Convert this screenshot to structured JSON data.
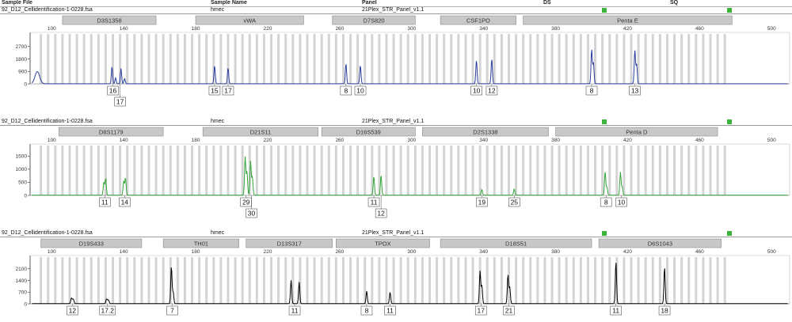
{
  "header": {
    "columns": [
      "Sample File",
      "Sample Name",
      "Panel",
      "DS",
      "SQ"
    ],
    "ds_color": "#3cb43c",
    "sq_color": "#3cb43c"
  },
  "panels": [
    {
      "sample_file": "92_D12_Cellidentification-1-0228.fsa",
      "sample_name": "hmec",
      "panel": "21Plex_STR_Panel_v1.1",
      "trace_color": "#2b3f9e"
    },
    {
      "sample_file": "92_D12_Cellidentification-1-0228.fsa",
      "sample_name": "hmec",
      "panel": "21Plex_STR_Panel_v1.1",
      "trace_color": "#35a63a"
    },
    {
      "sample_file": "92_D12_Cellidentification-1-0228.fsa",
      "sample_name": "hmec",
      "panel": "21Plex_STR_Panel_v1.1",
      "trace_color": "#000000"
    }
  ],
  "chart_data": [
    {
      "type": "line",
      "series": "electropherogram",
      "x_ticks": [
        100,
        140,
        180,
        220,
        260,
        300,
        340,
        380,
        420,
        460,
        500
      ],
      "xlim": [
        88,
        510
      ],
      "y_ticks": [
        0,
        900,
        1800,
        2700
      ],
      "ylim": [
        0,
        3600
      ],
      "markers": [
        {
          "name": "D3S1358",
          "start": 106,
          "end": 158
        },
        {
          "name": "vWA",
          "start": 180,
          "end": 240
        },
        {
          "name": "D7S820",
          "start": 256,
          "end": 302
        },
        {
          "name": "CSF1PO",
          "start": 316,
          "end": 358
        },
        {
          "name": "Penta E",
          "start": 362,
          "end": 478
        }
      ],
      "peaks": [
        {
          "x": 92,
          "h": 880,
          "w": 1.3
        },
        {
          "x": 133.5,
          "h": 1250,
          "w": 0.35
        },
        {
          "x": 135.5,
          "h": 420,
          "w": 0.35
        },
        {
          "x": 138.5,
          "h": 1100,
          "w": 0.35
        },
        {
          "x": 140.5,
          "h": 380,
          "w": 0.35
        },
        {
          "x": 190.5,
          "h": 1320,
          "w": 0.35
        },
        {
          "x": 198,
          "h": 1150,
          "w": 0.35
        },
        {
          "x": 263.5,
          "h": 1460,
          "w": 0.35
        },
        {
          "x": 271.5,
          "h": 1330,
          "w": 0.35
        },
        {
          "x": 336,
          "h": 1700,
          "w": 0.35
        },
        {
          "x": 344.5,
          "h": 1800,
          "w": 0.35
        },
        {
          "x": 400,
          "h": 2500,
          "w": 0.35
        },
        {
          "x": 401,
          "h": 1500,
          "w": 0.35
        },
        {
          "x": 424,
          "h": 2450,
          "w": 0.35
        },
        {
          "x": 425,
          "h": 1400,
          "w": 0.35
        }
      ],
      "allele_calls": [
        {
          "label": "16",
          "x": 134,
          "row": 0
        },
        {
          "label": "17",
          "x": 138,
          "row": 1
        },
        {
          "label": "15",
          "x": 190.5,
          "row": 0
        },
        {
          "label": "17",
          "x": 198,
          "row": 0
        },
        {
          "label": "8",
          "x": 263.5,
          "row": 0
        },
        {
          "label": "10",
          "x": 271.5,
          "row": 0
        },
        {
          "label": "10",
          "x": 336,
          "row": 0
        },
        {
          "label": "12",
          "x": 344.5,
          "row": 0
        },
        {
          "label": "8",
          "x": 400,
          "row": 0
        },
        {
          "label": "13",
          "x": 424,
          "row": 0
        }
      ]
    },
    {
      "type": "line",
      "series": "electropherogram",
      "x_ticks": [
        100,
        140,
        180,
        220,
        260,
        300,
        340,
        380,
        420,
        460,
        500
      ],
      "xlim": [
        88,
        510
      ],
      "y_ticks": [
        0,
        500,
        1000,
        1500
      ],
      "ylim": [
        0,
        1900
      ],
      "markers": [
        {
          "name": "D8S1179",
          "start": 104,
          "end": 162
        },
        {
          "name": "D21S11",
          "start": 184,
          "end": 248
        },
        {
          "name": "D16S539",
          "start": 250,
          "end": 302
        },
        {
          "name": "D2S1338",
          "start": 306,
          "end": 376
        },
        {
          "name": "Penta D",
          "start": 380,
          "end": 470
        }
      ],
      "peaks": [
        {
          "x": 129,
          "h": 500,
          "w": 0.35
        },
        {
          "x": 130,
          "h": 640,
          "w": 0.35
        },
        {
          "x": 140,
          "h": 540,
          "w": 0.35
        },
        {
          "x": 141,
          "h": 660,
          "w": 0.35
        },
        {
          "x": 207.5,
          "h": 1460,
          "w": 0.35
        },
        {
          "x": 208.5,
          "h": 900,
          "w": 0.35
        },
        {
          "x": 210.5,
          "h": 1300,
          "w": 0.35
        },
        {
          "x": 211.5,
          "h": 700,
          "w": 0.35
        },
        {
          "x": 279,
          "h": 720,
          "w": 0.35
        },
        {
          "x": 283,
          "h": 760,
          "w": 0.35
        },
        {
          "x": 339,
          "h": 220,
          "w": 0.35
        },
        {
          "x": 357,
          "h": 240,
          "w": 0.35
        },
        {
          "x": 407.5,
          "h": 900,
          "w": 0.35
        },
        {
          "x": 408.5,
          "h": 300,
          "w": 0.35
        },
        {
          "x": 416,
          "h": 880,
          "w": 0.35
        },
        {
          "x": 417,
          "h": 320,
          "w": 0.35
        }
      ],
      "allele_calls": [
        {
          "label": "11",
          "x": 129.5,
          "row": 0
        },
        {
          "label": "14",
          "x": 140.5,
          "row": 0
        },
        {
          "label": "29",
          "x": 208,
          "row": 0
        },
        {
          "label": "30",
          "x": 211,
          "row": 1
        },
        {
          "label": "11",
          "x": 279,
          "row": 0
        },
        {
          "label": "12",
          "x": 283,
          "row": 1
        },
        {
          "label": "19",
          "x": 339,
          "row": 0
        },
        {
          "label": "25",
          "x": 357,
          "row": 0
        },
        {
          "label": "8",
          "x": 408,
          "row": 0
        },
        {
          "label": "10",
          "x": 416.5,
          "row": 0
        }
      ]
    },
    {
      "type": "line",
      "series": "electropherogram",
      "x_ticks": [
        100,
        140,
        180,
        220,
        260,
        300,
        340,
        380,
        420,
        460,
        500
      ],
      "xlim": [
        88,
        510
      ],
      "y_ticks": [
        0,
        700,
        1400,
        2100
      ],
      "ylim": [
        0,
        2800
      ],
      "markers": [
        {
          "name": "D19S433",
          "start": 94,
          "end": 150
        },
        {
          "name": "TH01",
          "start": 162,
          "end": 204
        },
        {
          "name": "D13S317",
          "start": 208,
          "end": 256
        },
        {
          "name": "TPOX",
          "start": 258,
          "end": 310
        },
        {
          "name": "D18S51",
          "start": 316,
          "end": 400
        },
        {
          "name": "D6S1043",
          "start": 404,
          "end": 472
        }
      ],
      "peaks": [
        {
          "x": 111,
          "h": 330,
          "w": 0.4
        },
        {
          "x": 112,
          "h": 260,
          "w": 0.4
        },
        {
          "x": 130.5,
          "h": 280,
          "w": 0.4
        },
        {
          "x": 131.5,
          "h": 220,
          "w": 0.4
        },
        {
          "x": 166.5,
          "h": 2250,
          "w": 0.35
        },
        {
          "x": 167.5,
          "h": 700,
          "w": 0.35
        },
        {
          "x": 233,
          "h": 1400,
          "w": 0.35
        },
        {
          "x": 237.5,
          "h": 1300,
          "w": 0.35
        },
        {
          "x": 275,
          "h": 750,
          "w": 0.35
        },
        {
          "x": 288,
          "h": 700,
          "w": 0.35
        },
        {
          "x": 338,
          "h": 1950,
          "w": 0.35
        },
        {
          "x": 339,
          "h": 1100,
          "w": 0.35
        },
        {
          "x": 353.5,
          "h": 1750,
          "w": 0.35
        },
        {
          "x": 354.5,
          "h": 1000,
          "w": 0.35
        },
        {
          "x": 413.5,
          "h": 2550,
          "w": 0.35
        },
        {
          "x": 440.5,
          "h": 2200,
          "w": 0.35
        }
      ],
      "allele_calls": [
        {
          "label": "12",
          "x": 111.5,
          "row": 0
        },
        {
          "label": "17.2",
          "x": 131,
          "row": 0
        },
        {
          "label": "7",
          "x": 167,
          "row": 0
        },
        {
          "label": "11",
          "x": 235,
          "row": 0
        },
        {
          "label": "8",
          "x": 275,
          "row": 0
        },
        {
          "label": "11",
          "x": 288,
          "row": 0
        },
        {
          "label": "17",
          "x": 338.5,
          "row": 0
        },
        {
          "label": "21",
          "x": 354,
          "row": 0
        },
        {
          "label": "11",
          "x": 413.5,
          "row": 0
        },
        {
          "label": "18",
          "x": 440.5,
          "row": 0
        }
      ]
    }
  ],
  "bins": [
    94,
    98,
    102,
    106,
    110,
    114,
    118,
    122,
    126,
    130,
    134,
    138,
    142,
    146,
    150,
    154,
    158,
    162,
    166,
    170,
    174,
    178,
    182,
    186,
    190,
    194,
    198,
    202,
    206,
    210,
    214,
    218,
    222,
    226,
    230,
    234,
    238,
    242,
    246,
    250,
    254,
    258,
    262,
    266,
    270,
    274,
    278,
    282,
    286,
    290,
    294,
    298,
    302,
    306,
    310,
    314,
    318,
    322,
    326,
    330,
    334,
    338,
    342,
    346,
    350,
    354,
    358,
    362,
    366,
    370,
    374,
    378,
    382,
    386,
    390,
    394,
    398,
    402,
    406,
    410,
    414,
    418,
    422,
    426,
    430,
    434,
    438,
    442,
    446,
    450,
    454,
    458,
    462,
    466,
    470,
    474
  ]
}
